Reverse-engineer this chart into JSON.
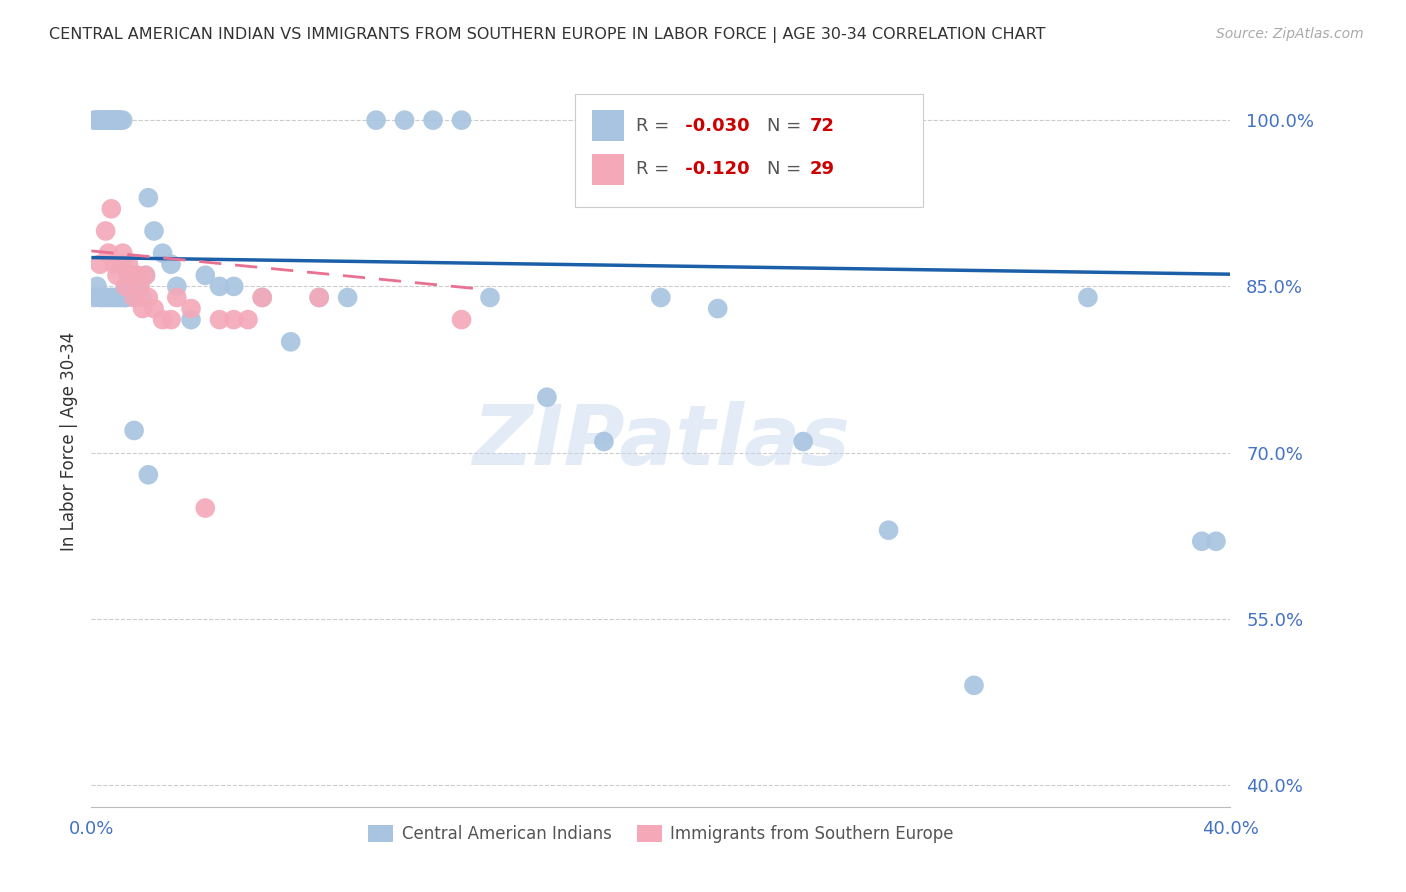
{
  "title": "CENTRAL AMERICAN INDIAN VS IMMIGRANTS FROM SOUTHERN EUROPE IN LABOR FORCE | AGE 30-34 CORRELATION CHART",
  "source": "Source: ZipAtlas.com",
  "ylabel": "In Labor Force | Age 30-34",
  "ytick_vals": [
    1.0,
    0.85,
    0.7,
    0.55,
    0.4
  ],
  "ytick_labels": [
    "100.0%",
    "85.0%",
    "70.0%",
    "55.0%",
    "40.0%"
  ],
  "xlim": [
    0.0,
    0.4
  ],
  "ylim": [
    0.38,
    1.04
  ],
  "blue_color": "#a8c4e0",
  "pink_color": "#f4a8b8",
  "blue_line_color": "#1a5fa8",
  "pink_line_color": "#e87090",
  "watermark": "ZIPatlas",
  "blue_R": "-0.030",
  "blue_N": "72",
  "pink_R": "-0.120",
  "pink_N": "29",
  "blue_line_x": [
    0.0,
    0.4
  ],
  "blue_line_y": [
    0.876,
    0.861
  ],
  "pink_line_x": [
    0.0,
    0.135
  ],
  "pink_line_y": [
    0.882,
    0.848
  ],
  "blue_x": [
    0.001,
    0.002,
    0.002,
    0.003,
    0.003,
    0.004,
    0.004,
    0.005,
    0.005,
    0.006,
    0.006,
    0.007,
    0.007,
    0.008,
    0.008,
    0.009,
    0.009,
    0.01,
    0.01,
    0.011,
    0.011,
    0.012,
    0.012,
    0.013,
    0.014,
    0.015,
    0.016,
    0.017,
    0.018,
    0.019,
    0.02,
    0.022,
    0.025,
    0.028,
    0.03,
    0.035,
    0.04,
    0.045,
    0.05,
    0.06,
    0.07,
    0.08,
    0.09,
    0.1,
    0.11,
    0.12,
    0.13,
    0.14,
    0.16,
    0.18,
    0.2,
    0.22,
    0.25,
    0.28,
    0.31,
    0.35,
    0.39,
    0.395,
    0.001,
    0.002,
    0.003,
    0.004,
    0.005,
    0.006,
    0.007,
    0.008,
    0.009,
    0.01,
    0.011,
    0.012,
    0.015,
    0.02
  ],
  "blue_y": [
    1.0,
    1.0,
    1.0,
    1.0,
    1.0,
    1.0,
    1.0,
    1.0,
    1.0,
    1.0,
    1.0,
    1.0,
    1.0,
    1.0,
    1.0,
    1.0,
    1.0,
    1.0,
    1.0,
    1.0,
    0.87,
    0.85,
    0.84,
    0.86,
    0.85,
    0.84,
    0.86,
    0.85,
    0.84,
    0.86,
    0.93,
    0.9,
    0.88,
    0.87,
    0.85,
    0.82,
    0.86,
    0.85,
    0.85,
    0.84,
    0.8,
    0.84,
    0.84,
    1.0,
    1.0,
    1.0,
    1.0,
    0.84,
    0.75,
    0.71,
    0.84,
    0.83,
    0.71,
    0.63,
    0.49,
    0.84,
    0.62,
    0.62,
    0.84,
    0.85,
    0.84,
    0.84,
    0.84,
    0.84,
    0.84,
    0.84,
    0.84,
    0.84,
    0.84,
    0.84,
    0.72,
    0.68
  ],
  "pink_x": [
    0.003,
    0.005,
    0.006,
    0.007,
    0.008,
    0.009,
    0.01,
    0.011,
    0.012,
    0.013,
    0.014,
    0.015,
    0.016,
    0.017,
    0.018,
    0.019,
    0.02,
    0.022,
    0.025,
    0.028,
    0.03,
    0.035,
    0.04,
    0.045,
    0.05,
    0.055,
    0.06,
    0.08,
    0.13
  ],
  "pink_y": [
    0.87,
    0.9,
    0.88,
    0.92,
    0.87,
    0.86,
    0.87,
    0.88,
    0.85,
    0.87,
    0.86,
    0.84,
    0.86,
    0.85,
    0.83,
    0.86,
    0.84,
    0.83,
    0.82,
    0.82,
    0.84,
    0.83,
    0.65,
    0.82,
    0.82,
    0.82,
    0.84,
    0.84,
    0.82
  ]
}
